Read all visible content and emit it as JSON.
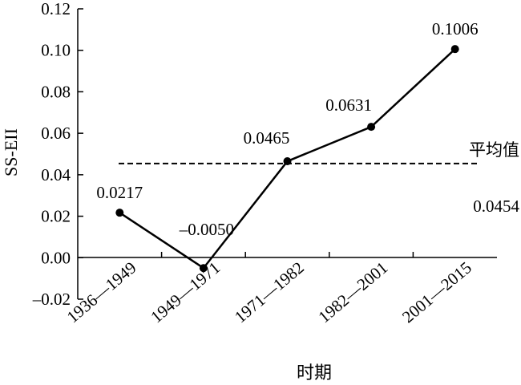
{
  "chart_data": {
    "type": "line",
    "title": "",
    "xlabel": "时期",
    "ylabel": "SS-EII",
    "categories": [
      "1936—1949",
      "1949—1971",
      "1971—1982",
      "1982—2001",
      "2001—2015"
    ],
    "series": [
      {
        "values": [
          0.0217,
          -0.005,
          0.0465,
          0.0631,
          0.1006
        ],
        "data_labels": [
          "0.0217",
          "–0.0050",
          "0.0465",
          "0.0631",
          "0.1006"
        ]
      }
    ],
    "reference_line": {
      "label": "平均值",
      "value": 0.0454,
      "value_label": "0.0454",
      "style": "dashed"
    },
    "ylim": [
      -0.02,
      0.12
    ],
    "yticks": [
      -0.02,
      0,
      0.02,
      0.04,
      0.06,
      0.08,
      0.1,
      0.12
    ],
    "ytick_labels": [
      "–0.02",
      "0.00",
      "0.02",
      "0.04",
      "0.06",
      "0.08",
      "0.10",
      "0.12"
    ],
    "grid": false,
    "legend": "none"
  }
}
